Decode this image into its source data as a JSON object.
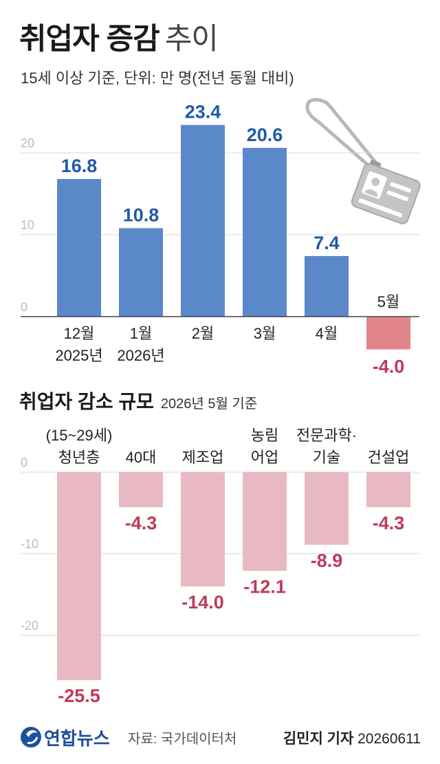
{
  "header": {
    "title_bold": "취업자 증감",
    "title_light": "추이",
    "subtitle": "15세 이상 기준, 단위: 만 명(전년 동월 대비)"
  },
  "chart_data": [
    {
      "type": "bar",
      "title": "취업자 증감 추이",
      "subtitle": "15세 이상 기준, 단위: 만 명(전년 동월 대비)",
      "categories": [
        [
          "12월",
          "2025년"
        ],
        [
          "1월",
          "2026년"
        ],
        [
          "2월"
        ],
        [
          "3월"
        ],
        [
          "4월"
        ],
        [
          "5월"
        ]
      ],
      "values": [
        16.8,
        10.8,
        23.4,
        20.6,
        7.4,
        -4.0
      ],
      "value_labels": [
        "16.8",
        "10.8",
        "23.4",
        "20.6",
        "7.4",
        "-4.0"
      ],
      "yticks": [
        "0",
        "10",
        "20"
      ],
      "ylim": [
        -4,
        26
      ],
      "grid": true,
      "colors": {
        "positive": "#5b88c9",
        "negative": "#e2858a",
        "positive_label": "#1e5aa8",
        "negative_label": "#c0395a"
      }
    },
    {
      "type": "bar",
      "title": "취업자 감소 규모",
      "subtitle": "2026년 5월 기준",
      "categories": [
        [
          "(15~29세)",
          "청년층"
        ],
        [
          "40대"
        ],
        [
          "제조업"
        ],
        [
          "농림",
          "어업"
        ],
        [
          "전문과학·",
          "기술"
        ],
        [
          "건설업"
        ]
      ],
      "values": [
        -25.5,
        -4.3,
        -14.0,
        -12.1,
        -8.9,
        -4.3
      ],
      "value_labels": [
        "-25.5",
        "-4.3",
        "-14.0",
        "-12.1",
        "-8.9",
        "-4.3"
      ],
      "yticks": [
        "0",
        "-10",
        "-20"
      ],
      "ylim": [
        -26,
        0
      ],
      "grid": true,
      "colors": {
        "bar": "#e8b9c3",
        "label": "#c0395a"
      }
    }
  ],
  "section2": {
    "title": "취업자 감소 규모",
    "subtitle": "2026년 5월 기준"
  },
  "footer": {
    "logo": "연합뉴스",
    "source": "자료: 국가데이터처",
    "reporter": "김민지 기자",
    "date": "20260611"
  },
  "illustration": "id-badge-lanyard-icon"
}
